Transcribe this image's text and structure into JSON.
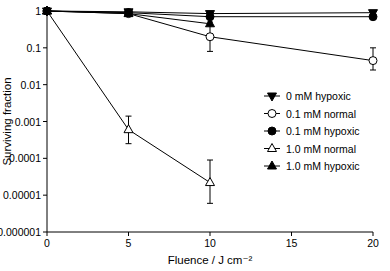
{
  "chart_data": {
    "type": "line",
    "x_label": "Fluence / J cm⁻²",
    "y_label": "Surviving fraction",
    "x": [
      0,
      5,
      10,
      20
    ],
    "xlim": [
      0,
      20
    ],
    "xticks": [
      0,
      5,
      10,
      15,
      20
    ],
    "ylim": [
      1e-06,
      1
    ],
    "yticks": [
      1e-06,
      1e-05,
      0.0001,
      0.001,
      0.01,
      0.1,
      1
    ],
    "log": "y",
    "grid": false,
    "legend": "right",
    "series": [
      {
        "name": "0 mM hypoxic",
        "color": "#000000",
        "marker": "triangle-down-filled",
        "line_style": "solid",
        "values": [
          1,
          0.95,
          0.85,
          0.9
        ],
        "error_range": [
          null,
          null,
          null,
          null
        ]
      },
      {
        "name": "0.1 mM normal",
        "color": "#000000",
        "marker": "circle-open",
        "line_style": "solid",
        "values": [
          1,
          0.85,
          0.2,
          0.045
        ],
        "error_range": [
          null,
          null,
          [
            0.08,
            0.5
          ],
          [
            0.025,
            0.1
          ]
        ]
      },
      {
        "name": "0.1 mM hypoxic",
        "color": "#000000",
        "marker": "circle-filled",
        "line_style": "solid",
        "values": [
          1,
          0.9,
          0.7,
          0.7
        ],
        "error_range": [
          null,
          null,
          null,
          null
        ]
      },
      {
        "name": "1.0 mM normal",
        "color": "#000000",
        "marker": "triangle-up-open",
        "line_style": "solid",
        "values": [
          1,
          0.0006,
          2.2e-05,
          null
        ],
        "error_range": [
          null,
          [
            0.00025,
            0.0014
          ],
          [
            6e-06,
            9e-05
          ],
          null
        ]
      },
      {
        "name": "1.0 mM hypoxic",
        "color": "#000000",
        "marker": "triangle-up-filled",
        "line_style": "solid",
        "values": [
          1,
          0.85,
          0.45,
          null
        ],
        "error_range": [
          null,
          null,
          null,
          null
        ]
      }
    ]
  }
}
